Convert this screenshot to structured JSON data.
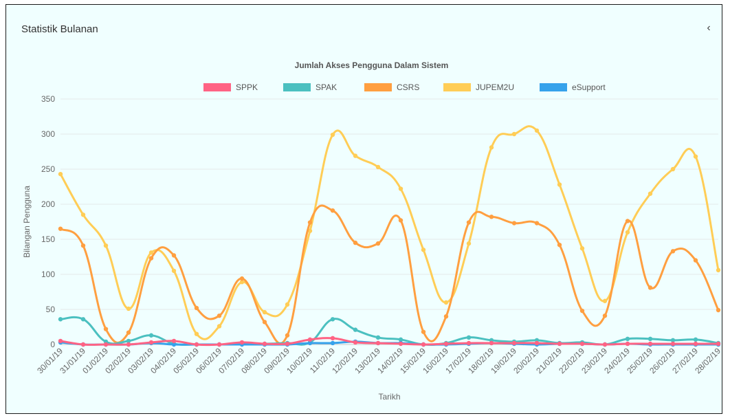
{
  "panel": {
    "title": "Statistik Bulanan",
    "collapse_icon": "chevron-left-icon"
  },
  "chart_data": {
    "type": "line",
    "title": "Jumlah Akses Pengguna Dalam Sistem",
    "xlabel": "Tarikh",
    "ylabel": "Bilangan Pengguna",
    "ylim": [
      0,
      350
    ],
    "yticks": [
      0,
      50,
      100,
      150,
      200,
      250,
      300,
      350
    ],
    "legend_position": "top",
    "grid": "horizontal",
    "categories": [
      "30/01/19",
      "31/01/19",
      "01/02/19",
      "02/02/19",
      "03/02/19",
      "04/02/19",
      "05/02/19",
      "06/02/19",
      "07/02/19",
      "08/02/19",
      "09/02/19",
      "10/02/19",
      "11/02/19",
      "12/02/19",
      "13/02/19",
      "14/02/19",
      "15/02/19",
      "16/02/19",
      "17/02/19",
      "18/02/19",
      "19/02/19",
      "20/02/19",
      "21/02/19",
      "22/02/19",
      "23/02/19",
      "24/02/19",
      "25/02/19",
      "26/02/19",
      "27/02/19",
      "28/02/19"
    ],
    "series": [
      {
        "name": "SPPK",
        "color": "#ff6384",
        "values": [
          5,
          0,
          0,
          0,
          3,
          5,
          0,
          0,
          3,
          1,
          1,
          7,
          9,
          3,
          2,
          1,
          0,
          1,
          2,
          2,
          2,
          2,
          1,
          1,
          0,
          1,
          1,
          1,
          1,
          1
        ]
      },
      {
        "name": "SPAK",
        "color": "#4bc0c0",
        "values": [
          36,
          36,
          4,
          5,
          13,
          1,
          0,
          0,
          1,
          1,
          2,
          3,
          36,
          21,
          10,
          7,
          0,
          2,
          10,
          6,
          4,
          6,
          2,
          3,
          0,
          8,
          8,
          6,
          7,
          2
        ]
      },
      {
        "name": "CSRS",
        "color": "#ff9f40",
        "values": [
          165,
          141,
          22,
          17,
          123,
          127,
          52,
          41,
          94,
          32,
          13,
          174,
          191,
          145,
          144,
          177,
          18,
          40,
          174,
          182,
          173,
          173,
          142,
          48,
          41,
          176,
          81,
          133,
          120,
          49
        ]
      },
      {
        "name": "JUPEM2U",
        "color": "#ffcd56",
        "values": [
          243,
          185,
          141,
          51,
          131,
          105,
          15,
          26,
          89,
          46,
          57,
          162,
          299,
          269,
          253,
          222,
          135,
          60,
          144,
          281,
          300,
          305,
          228,
          137,
          62,
          160,
          215,
          250,
          268,
          106
        ]
      },
      {
        "name": "eSupport",
        "color": "#36a2eb",
        "values": [
          3,
          0,
          0,
          0,
          2,
          0,
          0,
          0,
          0,
          0,
          0,
          2,
          2,
          4,
          2,
          2,
          0,
          0,
          1,
          2,
          1,
          0,
          1,
          1,
          0,
          1,
          0,
          0,
          0,
          0
        ]
      }
    ]
  }
}
